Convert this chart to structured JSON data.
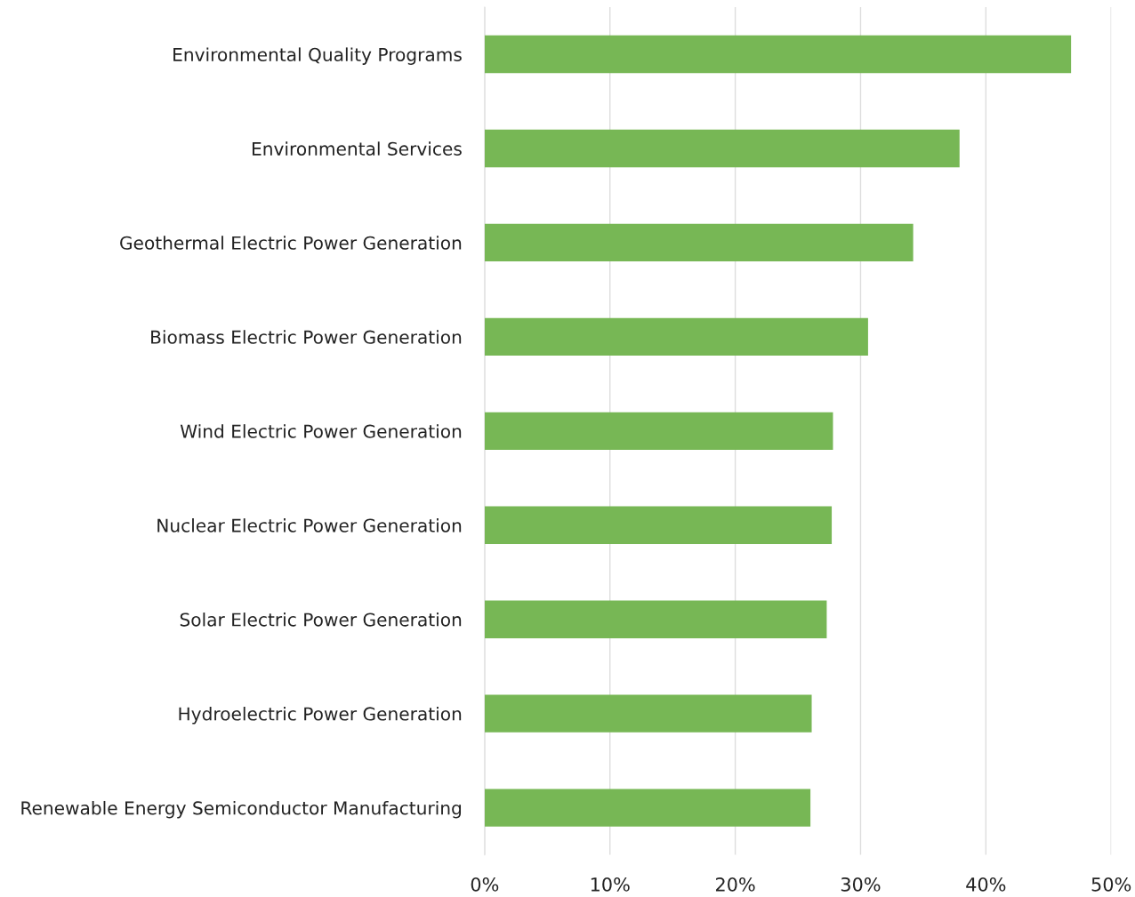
{
  "chart_data": {
    "type": "bar",
    "orientation": "horizontal",
    "categories": [
      "Environmental Quality Programs",
      "Environmental Services",
      "Geothermal Electric Power Generation",
      "Biomass Electric Power Generation",
      "Wind Electric Power Generation",
      "Nuclear Electric Power Generation",
      "Solar Electric Power Generation",
      "Hydroelectric Power Generation",
      "Renewable Energy Semiconductor Manufacturing"
    ],
    "values": [
      46.8,
      37.9,
      34.2,
      30.6,
      27.8,
      27.7,
      27.3,
      26.1,
      26.0
    ],
    "color": "#77b755",
    "xlim": [
      0,
      50
    ],
    "xticks": [
      {
        "value": 0,
        "label": "0%"
      },
      {
        "value": 10,
        "label": "10%"
      },
      {
        "value": 20,
        "label": "20%"
      },
      {
        "value": 30,
        "label": "30%"
      },
      {
        "value": 40,
        "label": "40%"
      },
      {
        "value": 50,
        "label": "50%"
      }
    ],
    "grid": "x"
  }
}
